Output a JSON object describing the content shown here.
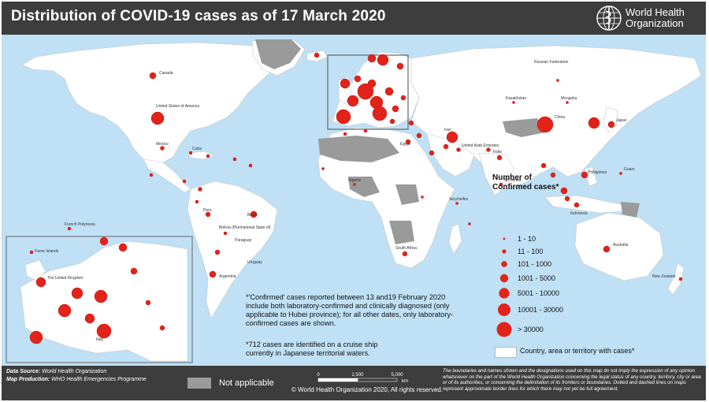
{
  "header": {
    "title": "Distribution of COVID-19  cases as of 17 March 2020",
    "org_line1": "World Health",
    "org_line2": "Organization"
  },
  "legend": {
    "title_line1": "Number of",
    "title_line2": "Confirmed cases*",
    "items": [
      "1 - 10",
      "11 - 100",
      "101 - 1000",
      "1001 - 5000",
      "5001 - 10000",
      "10001 - 30000",
      "> 30000"
    ],
    "country_label": "Country, area or territory with cases*"
  },
  "notes": {
    "confirmed_lines": [
      "*'Confirmed' cases reported between 13 and19 February 2020",
      "include both laboratory-confirmed and clinically diagnosed (only",
      "applicable to Hubei province); for all other dates, only laboratory-",
      "confirmed cases are shown."
    ],
    "cruise_lines": [
      "*712 cases are identified on a cruise ship",
      "currently in Japanese territorial waters."
    ]
  },
  "footer": {
    "source_label": "Data Source:",
    "source_value": "World Health Organization",
    "production_label": "Map Production:",
    "production_value": "WHO Health Emergencies Programme",
    "not_applicable": "Not applicable",
    "scale_ticks": [
      "0",
      "2,500",
      "5,000"
    ],
    "scale_unit": "km",
    "copyright": "© World Health Organization  2020,  All rights reserved.",
    "disclaimer": "The boundaries and names shown and the designations used on this map do not imply the expression of any opinion whatsoever on the part of the World Health Organization concerning the legal status of any country, territory, city or area or of its authorities, or concerning the delimitation of its frontiers or boundaries. Dotted and dashed lines on maps represent approximate border lines for which there may not yet be full agreement."
  },
  "colors": {
    "ocean": "#bfe0f5",
    "land": "#ffffff",
    "not_applicable": "#9a9a9a",
    "case_marker": "#e2231a",
    "header_footer": "#3d3d3d"
  },
  "map_labels": {
    "canada": "Canada",
    "usa": "United States of America",
    "mexico": "Mexico",
    "cuba": "Cuba",
    "brazil": "Brazil",
    "peru": "Peru",
    "bolivia": "Bolivia (Plurinational State of)",
    "paraguay": "Paraguay",
    "uruguay": "Uruguay",
    "argentina": "Argentina",
    "french_polynesia": "French Polynesia",
    "russia": "Russian Federation",
    "kazakhstan": "Kazakhstan",
    "mongolia": "Mongolia",
    "china": "China",
    "japan": "Japan",
    "india": "India",
    "iran": "Iran",
    "egypt": "Egypt",
    "nigeria": "Nigeria",
    "south_africa": "South Africa",
    "australia": "Australia",
    "new_zealand": "New Zealand",
    "indonesia": "Indonesia",
    "philippines": "Philippines",
    "faroe": "Faroe Islands",
    "uk": "The United Kingdom",
    "italy": "Italy",
    "guam": "Guam",
    "seychelles": "Seychelles",
    "sri_lanka": "Sri Lanka",
    "uae": "United Arab Emirates"
  }
}
